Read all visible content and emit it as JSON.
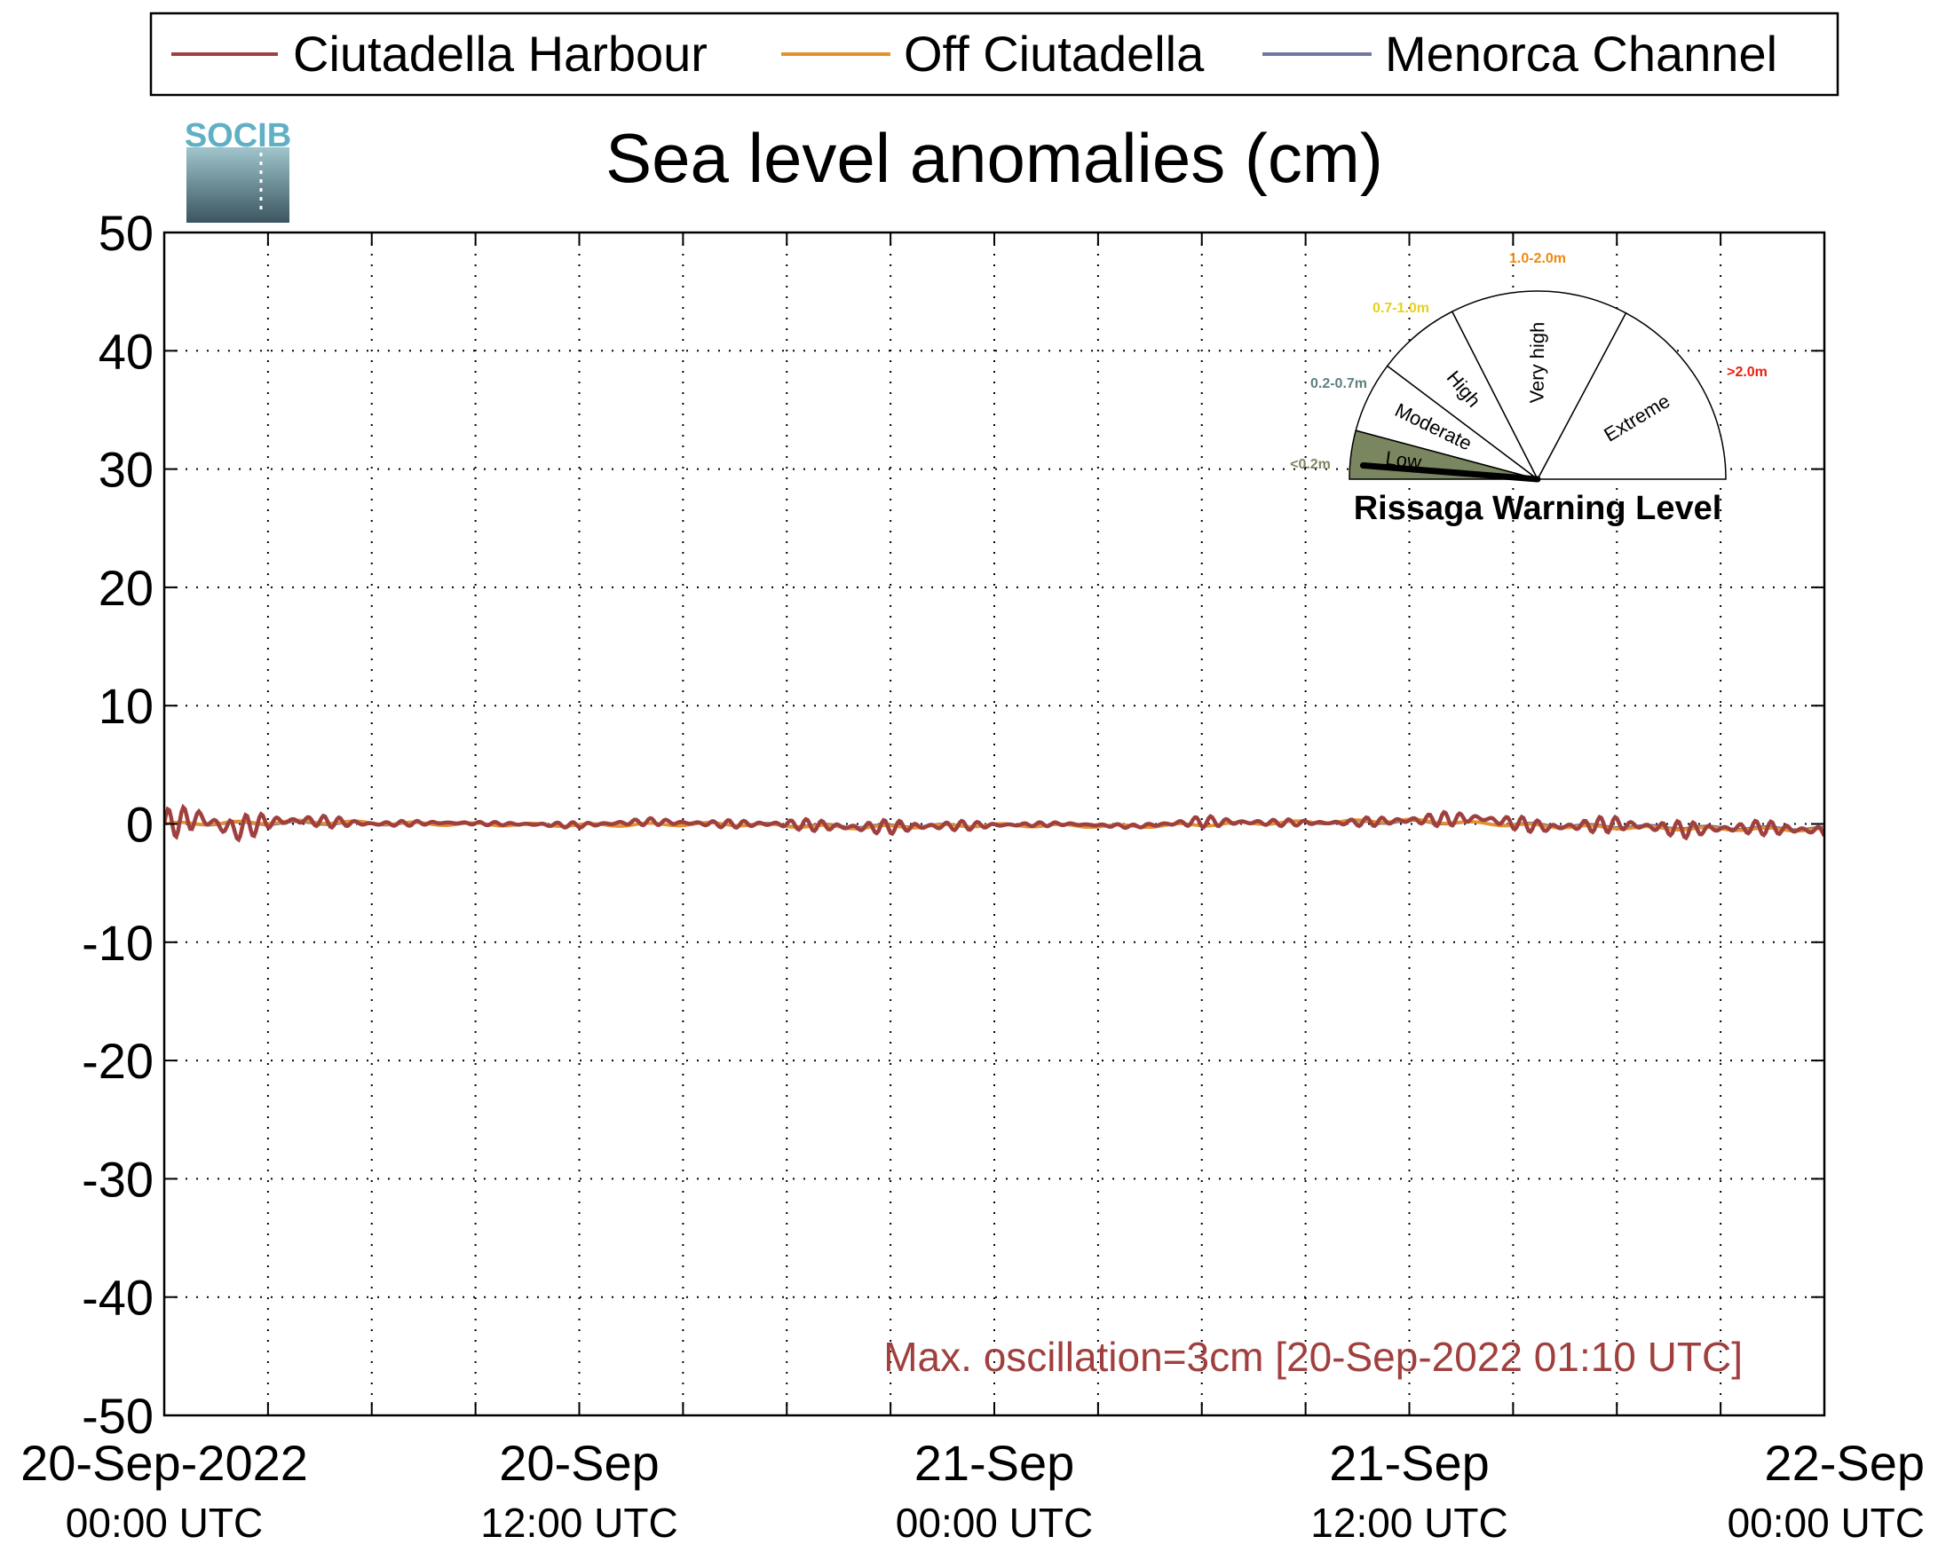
{
  "chart_data": {
    "type": "line",
    "title": "Sea level anomalies (cm)",
    "xlabel": "",
    "ylabel": "",
    "ylim": [
      -50,
      50
    ],
    "yticks": [
      50,
      40,
      30,
      20,
      10,
      0,
      -10,
      -20,
      -30,
      -40,
      -50
    ],
    "xlim": [
      "2022-09-20 00:00",
      "2022-09-22 00:00"
    ],
    "x_tick_labels": [
      {
        "date": "20-Sep-2022",
        "time": "00:00 UTC"
      },
      {
        "date": "20-Sep",
        "time": "12:00 UTC"
      },
      {
        "date": "21-Sep",
        "time": "00:00 UTC"
      },
      {
        "date": "21-Sep",
        "time": "12:00 UTC"
      },
      {
        "date": "22-Sep",
        "time": "00:00 UTC"
      }
    ],
    "grid": true,
    "legend_position": "top",
    "series": [
      {
        "name": "Ciutadella Harbour",
        "color": "#a0403e",
        "x_hours": [
          0,
          1,
          2,
          3,
          4,
          6,
          8,
          10,
          12,
          14,
          16,
          18,
          20,
          22,
          24,
          26,
          28,
          30,
          32,
          34,
          36,
          38,
          40,
          42,
          44,
          46,
          48
        ],
        "values": [
          0,
          0.5,
          -0.5,
          0.2,
          0.3,
          0,
          0.1,
          0,
          -0.1,
          0.2,
          0,
          0,
          -0.3,
          -0.2,
          -0.1,
          0,
          -0.2,
          0.2,
          0.1,
          0.1,
          0.3,
          0.5,
          -0.3,
          0,
          -0.5,
          -0.3,
          -0.6
        ],
        "osc_amplitude": [
          1.2,
          1.5,
          1.2,
          0.8,
          0.6,
          0.3,
          0.15,
          0.15,
          0.25,
          0.3,
          0.3,
          0.45,
          0.6,
          0.6,
          0.25,
          0.15,
          0.15,
          0.5,
          0.3,
          0.25,
          0.6,
          0.6,
          0.6,
          0.7,
          0.7,
          0.6,
          0.7
        ]
      },
      {
        "name": "Off Ciutadella",
        "color": "#e8902a",
        "x_hours": [
          0,
          4,
          8,
          12,
          16,
          20,
          24,
          28,
          32,
          36,
          40,
          44,
          48
        ],
        "values": [
          0,
          0.2,
          0,
          -0.1,
          0,
          -0.3,
          -0.1,
          -0.2,
          0.1,
          0.3,
          -0.2,
          -0.4,
          -0.5
        ]
      },
      {
        "name": "Menorca Channel",
        "color": "#7078a0",
        "x_hours": [
          0,
          4,
          8,
          12,
          16,
          20,
          24,
          28,
          32,
          36,
          40,
          44,
          48
        ],
        "values": [
          0,
          0.1,
          0,
          -0.1,
          0,
          -0.2,
          -0.1,
          -0.2,
          0.1,
          0.2,
          -0.1,
          -0.3,
          -0.4
        ]
      }
    ],
    "annotation": "Max. oscillation=3cm [20-Sep-2022 01:10 UTC]",
    "annotation_color": "#a0403e"
  },
  "gauge": {
    "title": "Rissaga Warning Level",
    "current_level": "Low",
    "sectors": [
      {
        "label": "Low",
        "range": "<0.2m",
        "color": "#7a8660",
        "range_color": "#7a8660",
        "active": true
      },
      {
        "label": "Moderate",
        "range": "0.2-0.7m",
        "color": "#ffffff",
        "range_color": "#5f7f80",
        "active": false
      },
      {
        "label": "High",
        "range": "0.7-1.0m",
        "color": "#ffffff",
        "range_color": "#e8d020",
        "active": false
      },
      {
        "label": "Very high",
        "range": "1.0-2.0m",
        "color": "#ffffff",
        "range_color": "#ee8a10",
        "active": false
      },
      {
        "label": "Extreme",
        "range": ">2.0m",
        "color": "#ffffff",
        "range_color": "#e82010",
        "active": false
      }
    ]
  },
  "logo": {
    "text": "SOCIB"
  }
}
